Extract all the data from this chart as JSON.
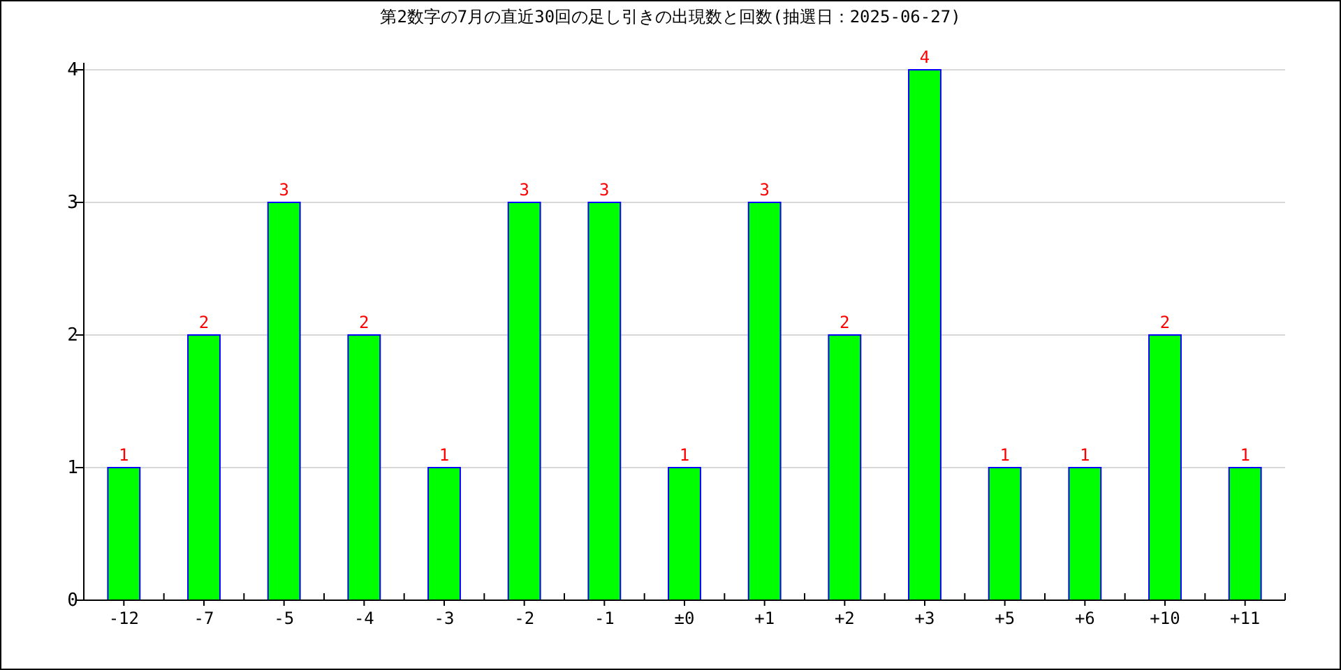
{
  "chart_data": {
    "type": "bar",
    "title": "第2数字の7月の直近30回の足し引きの出現数と回数(抽選日：2025-06-27)",
    "categories": [
      "-12",
      "-7",
      "-5",
      "-4",
      "-3",
      "-2",
      "-1",
      "±0",
      "+1",
      "+2",
      "+3",
      "+5",
      "+6",
      "+10",
      "+11"
    ],
    "values": [
      1,
      2,
      3,
      2,
      1,
      3,
      3,
      1,
      3,
      2,
      4,
      1,
      1,
      2,
      1
    ],
    "color": "#00ff00",
    "ylim": [
      0,
      4
    ],
    "yticks": [
      0,
      1,
      2,
      3,
      4
    ],
    "grid": "y",
    "data_labels": true
  }
}
